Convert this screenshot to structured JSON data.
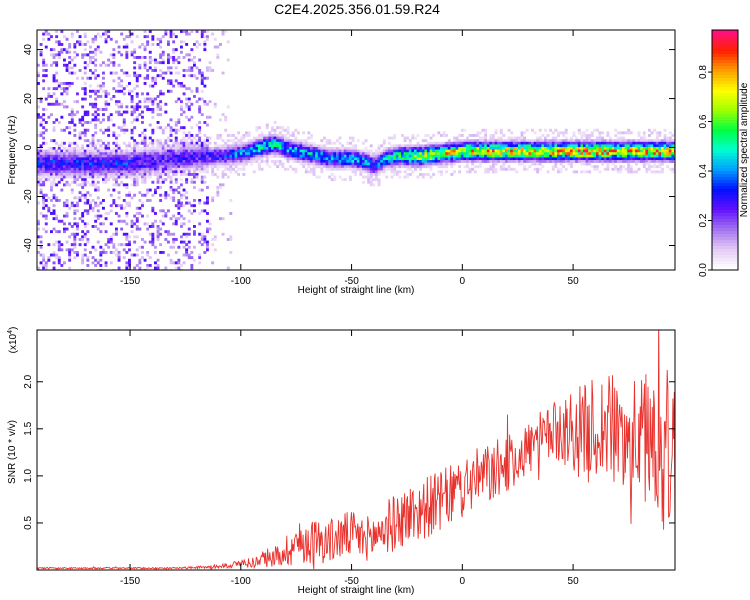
{
  "title": "C2E4.2025.356.01.59.R24",
  "chart_data": [
    {
      "type": "heatmap",
      "xlabel": "Height of straight line (km)",
      "ylabel": "Frequency (Hz)",
      "xlim": [
        -192,
        96
      ],
      "ylim": [
        -50,
        48
      ],
      "xticks": [
        -150,
        -100,
        -50,
        0,
        50
      ],
      "yticks": [
        -40,
        -20,
        0,
        20,
        40
      ],
      "xtick_labels": [
        "-150",
        "-100",
        "-50",
        "0",
        "50"
      ],
      "ytick_labels": [
        "-40",
        "-20",
        "0",
        "20",
        "40"
      ],
      "colorbar": {
        "label": "Normalized spectral amplitude",
        "range": [
          0,
          0.97
        ],
        "ticks": [
          0.0,
          0.2,
          0.4,
          0.6,
          0.8
        ],
        "tick_labels": [
          "0.0",
          "0.2",
          "0.4",
          "0.6",
          "0.8"
        ],
        "colors": [
          "#ffffff",
          "#e2c8f4",
          "#a070f0",
          "#6010ff",
          "#0010ff",
          "#00a0ff",
          "#00ffd0",
          "#00ff40",
          "#a0ff00",
          "#ffff00",
          "#ffa000",
          "#ff2000",
          "#ff1080"
        ]
      },
      "ridge": {
        "description": "dominant frequency track",
        "x": [
          -150,
          -140,
          -130,
          -120,
          -115,
          -110,
          -100,
          -90,
          -85,
          -80,
          -70,
          -60,
          -50,
          -45,
          -40,
          -35,
          -30,
          -20,
          -10,
          0,
          10,
          20,
          30,
          40,
          50,
          60,
          70,
          80,
          90,
          96
        ],
        "freq": [
          -6,
          -5,
          -4,
          -3,
          -3,
          -3,
          -2,
          1,
          2,
          0,
          -2,
          -4,
          -4,
          -5,
          -7,
          -4,
          -3,
          -3,
          -2,
          -1,
          -1,
          -1,
          -1,
          -1,
          -1,
          -1,
          -1,
          -1,
          -1,
          -1
        ],
        "peak_amplitude": [
          0.35,
          0.3,
          0.3,
          0.3,
          0.32,
          0.35,
          0.45,
          0.55,
          0.55,
          0.5,
          0.5,
          0.45,
          0.5,
          0.45,
          0.4,
          0.5,
          0.6,
          0.75,
          0.8,
          0.8,
          0.85,
          0.85,
          0.85,
          0.85,
          0.9,
          0.9,
          0.85,
          0.85,
          0.9,
          0.85
        ]
      }
    },
    {
      "type": "line",
      "xlabel": "Height of straight line (km)",
      "ylabel": "SNR (10 * v/v)",
      "multiplier_label": "(x10",
      "multiplier_exponent": "4",
      "multiplier_close": ")",
      "xlim": [
        -192,
        96
      ],
      "ylim": [
        0,
        2.55
      ],
      "xticks": [
        -150,
        -100,
        -50,
        0,
        50
      ],
      "yticks": [
        0.5,
        1.0,
        1.5,
        2.0
      ],
      "xtick_labels": [
        "-150",
        "-100",
        "-50",
        "0",
        "50"
      ],
      "ytick_labels": [
        "0.5",
        "1.0",
        "1.5",
        "2.0"
      ],
      "color": "#e8322d",
      "series": [
        {
          "name": "SNR",
          "x": [
            -192,
            -170,
            -150,
            -130,
            -115,
            -105,
            -100,
            -95,
            -90,
            -85,
            -80,
            -75,
            -70,
            -65,
            -60,
            -55,
            -50,
            -45,
            -40,
            -35,
            -30,
            -25,
            -20,
            -15,
            -10,
            -5,
            0,
            5,
            10,
            15,
            20,
            25,
            30,
            35,
            40,
            45,
            50,
            55,
            60,
            65,
            70,
            75,
            80,
            85,
            90,
            96
          ],
          "mean": [
            0.02,
            0.02,
            0.02,
            0.02,
            0.03,
            0.05,
            0.07,
            0.08,
            0.1,
            0.14,
            0.2,
            0.28,
            0.3,
            0.32,
            0.3,
            0.35,
            0.38,
            0.33,
            0.35,
            0.45,
            0.5,
            0.58,
            0.62,
            0.68,
            0.72,
            0.8,
            0.88,
            0.95,
            1.0,
            1.05,
            1.12,
            1.2,
            1.3,
            1.38,
            1.45,
            1.5,
            1.48,
            1.45,
            1.5,
            1.52,
            1.45,
            1.4,
            1.4,
            1.45,
            1.3,
            1.2
          ],
          "spread": [
            0.005,
            0.005,
            0.005,
            0.005,
            0.01,
            0.02,
            0.03,
            0.04,
            0.05,
            0.07,
            0.12,
            0.15,
            0.16,
            0.16,
            0.16,
            0.17,
            0.17,
            0.16,
            0.16,
            0.2,
            0.2,
            0.22,
            0.22,
            0.22,
            0.22,
            0.22,
            0.22,
            0.22,
            0.22,
            0.22,
            0.2,
            0.2,
            0.2,
            0.2,
            0.2,
            0.25,
            0.3,
            0.35,
            0.38,
            0.4,
            0.4,
            0.42,
            0.42,
            0.5,
            0.6,
            0.6
          ]
        }
      ]
    }
  ]
}
